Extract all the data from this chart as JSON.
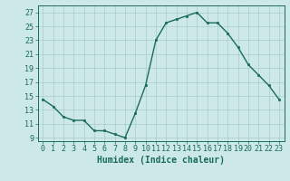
{
  "x": [
    0,
    1,
    2,
    3,
    4,
    5,
    6,
    7,
    8,
    9,
    10,
    11,
    12,
    13,
    14,
    15,
    16,
    17,
    18,
    19,
    20,
    21,
    22,
    23
  ],
  "y": [
    14.5,
    13.5,
    12.0,
    11.5,
    11.5,
    10.0,
    10.0,
    9.5,
    9.0,
    12.5,
    16.5,
    23.0,
    25.5,
    26.0,
    26.5,
    27.0,
    25.5,
    25.5,
    24.0,
    22.0,
    19.5,
    18.0,
    16.5,
    14.5
  ],
  "xlim": [
    -0.5,
    23.5
  ],
  "ylim": [
    8.5,
    28
  ],
  "yticks": [
    9,
    11,
    13,
    15,
    17,
    19,
    21,
    23,
    25,
    27
  ],
  "xticks": [
    0,
    1,
    2,
    3,
    4,
    5,
    6,
    7,
    8,
    9,
    10,
    11,
    12,
    13,
    14,
    15,
    16,
    17,
    18,
    19,
    20,
    21,
    22,
    23
  ],
  "xlabel": "Humidex (Indice chaleur)",
  "line_color": "#1a6b5a",
  "marker": "s",
  "marker_size": 1.8,
  "bg_color": "#cce8e8",
  "grid_color": "#aacccc",
  "line_width": 1.0,
  "xlabel_fontsize": 7,
  "tick_fontsize": 6
}
